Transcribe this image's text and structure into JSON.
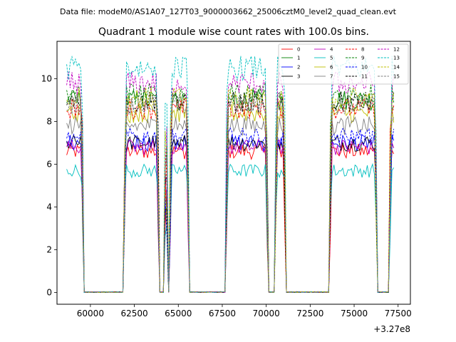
{
  "header": {
    "data_file": "Data file: modeM0/AS1A07_127T03_9000003662_25006cztM0_level2_quad_clean.evt"
  },
  "chart_data": {
    "type": "line",
    "title": "Quadrant 1 module wise count rates with 100.0s bins.",
    "xlabel": "",
    "ylabel": "",
    "x_offset_label": "+3.27e8",
    "xlim": [
      58100,
      78200
    ],
    "ylim": [
      -0.55,
      11.75
    ],
    "x_ticks": [
      60000,
      62500,
      65000,
      67500,
      70000,
      72500,
      75000,
      77500
    ],
    "x_tick_labels": [
      "60000",
      "62500",
      "65000",
      "67500",
      "70000",
      "72500",
      "75000",
      "77500"
    ],
    "y_ticks": [
      0,
      2,
      4,
      6,
      8,
      10
    ],
    "y_tick_labels": [
      "0",
      "2",
      "4",
      "6",
      "8",
      "10"
    ],
    "legend_position": "top-right",
    "x_start": 58650,
    "bin_width": 100,
    "segments": [
      {
        "from": 58650,
        "to": 59550,
        "active": true
      },
      {
        "from": 59650,
        "to": 61850,
        "active": false
      },
      {
        "from": 61950,
        "to": 63850,
        "active": true
      },
      {
        "from": 63950,
        "to": 64150,
        "active": false
      },
      {
        "from": 64250,
        "to": 64350,
        "active": true
      },
      {
        "from": 64450,
        "to": 64450,
        "active": false
      },
      {
        "from": 64550,
        "to": 65550,
        "active": true
      },
      {
        "from": 65650,
        "to": 67650,
        "active": false
      },
      {
        "from": 67750,
        "to": 70050,
        "active": true
      },
      {
        "from": 70150,
        "to": 70450,
        "active": false
      },
      {
        "from": 70550,
        "to": 71050,
        "active": true
      },
      {
        "from": 71150,
        "to": 73550,
        "active": false
      },
      {
        "from": 73650,
        "to": 76250,
        "active": true
      },
      {
        "from": 76350,
        "to": 76950,
        "active": false
      },
      {
        "from": 77050,
        "to": 77250,
        "active": true
      }
    ],
    "series": [
      {
        "name": "0",
        "color": "#ff0000",
        "dashed": false,
        "level": 6.6
      },
      {
        "name": "1",
        "color": "#008000",
        "dashed": false,
        "level": 9.0
      },
      {
        "name": "2",
        "color": "#0000ff",
        "dashed": false,
        "level": 7.0
      },
      {
        "name": "3",
        "color": "#000000",
        "dashed": false,
        "level": 7.0
      },
      {
        "name": "4",
        "color": "#bf00bf",
        "dashed": false,
        "level": 6.8
      },
      {
        "name": "5",
        "color": "#00bfbf",
        "dashed": false,
        "level": 5.7
      },
      {
        "name": "6",
        "color": "#bfbf00",
        "dashed": false,
        "level": 8.4
      },
      {
        "name": "7",
        "color": "#808080",
        "dashed": false,
        "level": 7.8
      },
      {
        "name": "8",
        "color": "#ff0000",
        "dashed": true,
        "level": 8.6
      },
      {
        "name": "9",
        "color": "#008000",
        "dashed": true,
        "level": 9.3
      },
      {
        "name": "10",
        "color": "#0000ff",
        "dashed": true,
        "level": 7.3
      },
      {
        "name": "11",
        "color": "#000000",
        "dashed": true,
        "level": 8.9
      },
      {
        "name": "12",
        "color": "#bf00bf",
        "dashed": true,
        "level": 9.8
      },
      {
        "name": "13",
        "color": "#00bfbf",
        "dashed": true,
        "level": 10.5
      },
      {
        "name": "14",
        "color": "#bfbf00",
        "dashed": true,
        "level": 9.1
      },
      {
        "name": "15",
        "color": "#808080",
        "dashed": true,
        "level": 8.8
      }
    ]
  }
}
